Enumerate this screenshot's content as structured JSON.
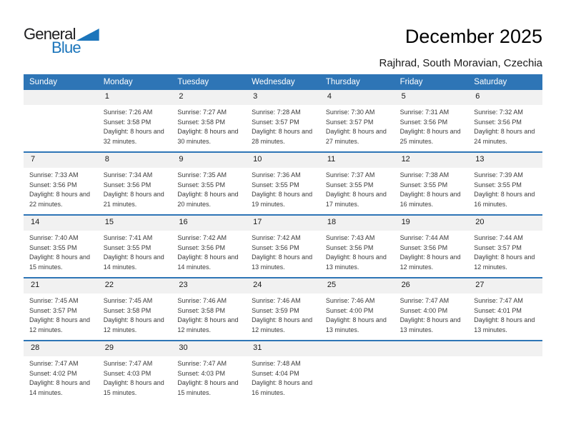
{
  "logo": {
    "word1": "General",
    "word2": "Blue"
  },
  "page_header": {
    "title": "December 2025",
    "location": "Rajhrad, South Moravian, Czechia"
  },
  "colors": {
    "header_blue": "#2e75b6",
    "line_blue": "#2e75b6",
    "band_gray": "#f1f1f1",
    "logo_blue": "#1b75bb"
  },
  "labels": {
    "sunrise": "Sunrise:",
    "sunset": "Sunset:",
    "daylight": "Daylight:"
  },
  "calendar": {
    "day_headers": [
      "Sunday",
      "Monday",
      "Tuesday",
      "Wednesday",
      "Thursday",
      "Friday",
      "Saturday"
    ],
    "weeks": [
      [
        null,
        {
          "date": "1",
          "sunrise": "7:26 AM",
          "sunset": "3:58 PM",
          "daylight": "8 hours and 32 minutes."
        },
        {
          "date": "2",
          "sunrise": "7:27 AM",
          "sunset": "3:58 PM",
          "daylight": "8 hours and 30 minutes."
        },
        {
          "date": "3",
          "sunrise": "7:28 AM",
          "sunset": "3:57 PM",
          "daylight": "8 hours and 28 minutes."
        },
        {
          "date": "4",
          "sunrise": "7:30 AM",
          "sunset": "3:57 PM",
          "daylight": "8 hours and 27 minutes."
        },
        {
          "date": "5",
          "sunrise": "7:31 AM",
          "sunset": "3:56 PM",
          "daylight": "8 hours and 25 minutes."
        },
        {
          "date": "6",
          "sunrise": "7:32 AM",
          "sunset": "3:56 PM",
          "daylight": "8 hours and 24 minutes."
        }
      ],
      [
        {
          "date": "7",
          "sunrise": "7:33 AM",
          "sunset": "3:56 PM",
          "daylight": "8 hours and 22 minutes."
        },
        {
          "date": "8",
          "sunrise": "7:34 AM",
          "sunset": "3:56 PM",
          "daylight": "8 hours and 21 minutes."
        },
        {
          "date": "9",
          "sunrise": "7:35 AM",
          "sunset": "3:55 PM",
          "daylight": "8 hours and 20 minutes."
        },
        {
          "date": "10",
          "sunrise": "7:36 AM",
          "sunset": "3:55 PM",
          "daylight": "8 hours and 19 minutes."
        },
        {
          "date": "11",
          "sunrise": "7:37 AM",
          "sunset": "3:55 PM",
          "daylight": "8 hours and 17 minutes."
        },
        {
          "date": "12",
          "sunrise": "7:38 AM",
          "sunset": "3:55 PM",
          "daylight": "8 hours and 16 minutes."
        },
        {
          "date": "13",
          "sunrise": "7:39 AM",
          "sunset": "3:55 PM",
          "daylight": "8 hours and 16 minutes."
        }
      ],
      [
        {
          "date": "14",
          "sunrise": "7:40 AM",
          "sunset": "3:55 PM",
          "daylight": "8 hours and 15 minutes."
        },
        {
          "date": "15",
          "sunrise": "7:41 AM",
          "sunset": "3:55 PM",
          "daylight": "8 hours and 14 minutes."
        },
        {
          "date": "16",
          "sunrise": "7:42 AM",
          "sunset": "3:56 PM",
          "daylight": "8 hours and 14 minutes."
        },
        {
          "date": "17",
          "sunrise": "7:42 AM",
          "sunset": "3:56 PM",
          "daylight": "8 hours and 13 minutes."
        },
        {
          "date": "18",
          "sunrise": "7:43 AM",
          "sunset": "3:56 PM",
          "daylight": "8 hours and 13 minutes."
        },
        {
          "date": "19",
          "sunrise": "7:44 AM",
          "sunset": "3:56 PM",
          "daylight": "8 hours and 12 minutes."
        },
        {
          "date": "20",
          "sunrise": "7:44 AM",
          "sunset": "3:57 PM",
          "daylight": "8 hours and 12 minutes."
        }
      ],
      [
        {
          "date": "21",
          "sunrise": "7:45 AM",
          "sunset": "3:57 PM",
          "daylight": "8 hours and 12 minutes."
        },
        {
          "date": "22",
          "sunrise": "7:45 AM",
          "sunset": "3:58 PM",
          "daylight": "8 hours and 12 minutes."
        },
        {
          "date": "23",
          "sunrise": "7:46 AM",
          "sunset": "3:58 PM",
          "daylight": "8 hours and 12 minutes."
        },
        {
          "date": "24",
          "sunrise": "7:46 AM",
          "sunset": "3:59 PM",
          "daylight": "8 hours and 12 minutes."
        },
        {
          "date": "25",
          "sunrise": "7:46 AM",
          "sunset": "4:00 PM",
          "daylight": "8 hours and 13 minutes."
        },
        {
          "date": "26",
          "sunrise": "7:47 AM",
          "sunset": "4:00 PM",
          "daylight": "8 hours and 13 minutes."
        },
        {
          "date": "27",
          "sunrise": "7:47 AM",
          "sunset": "4:01 PM",
          "daylight": "8 hours and 13 minutes."
        }
      ],
      [
        {
          "date": "28",
          "sunrise": "7:47 AM",
          "sunset": "4:02 PM",
          "daylight": "8 hours and 14 minutes."
        },
        {
          "date": "29",
          "sunrise": "7:47 AM",
          "sunset": "4:03 PM",
          "daylight": "8 hours and 15 minutes."
        },
        {
          "date": "30",
          "sunrise": "7:47 AM",
          "sunset": "4:03 PM",
          "daylight": "8 hours and 15 minutes."
        },
        {
          "date": "31",
          "sunrise": "7:48 AM",
          "sunset": "4:04 PM",
          "daylight": "8 hours and 16 minutes."
        },
        null,
        null,
        null
      ]
    ]
  }
}
